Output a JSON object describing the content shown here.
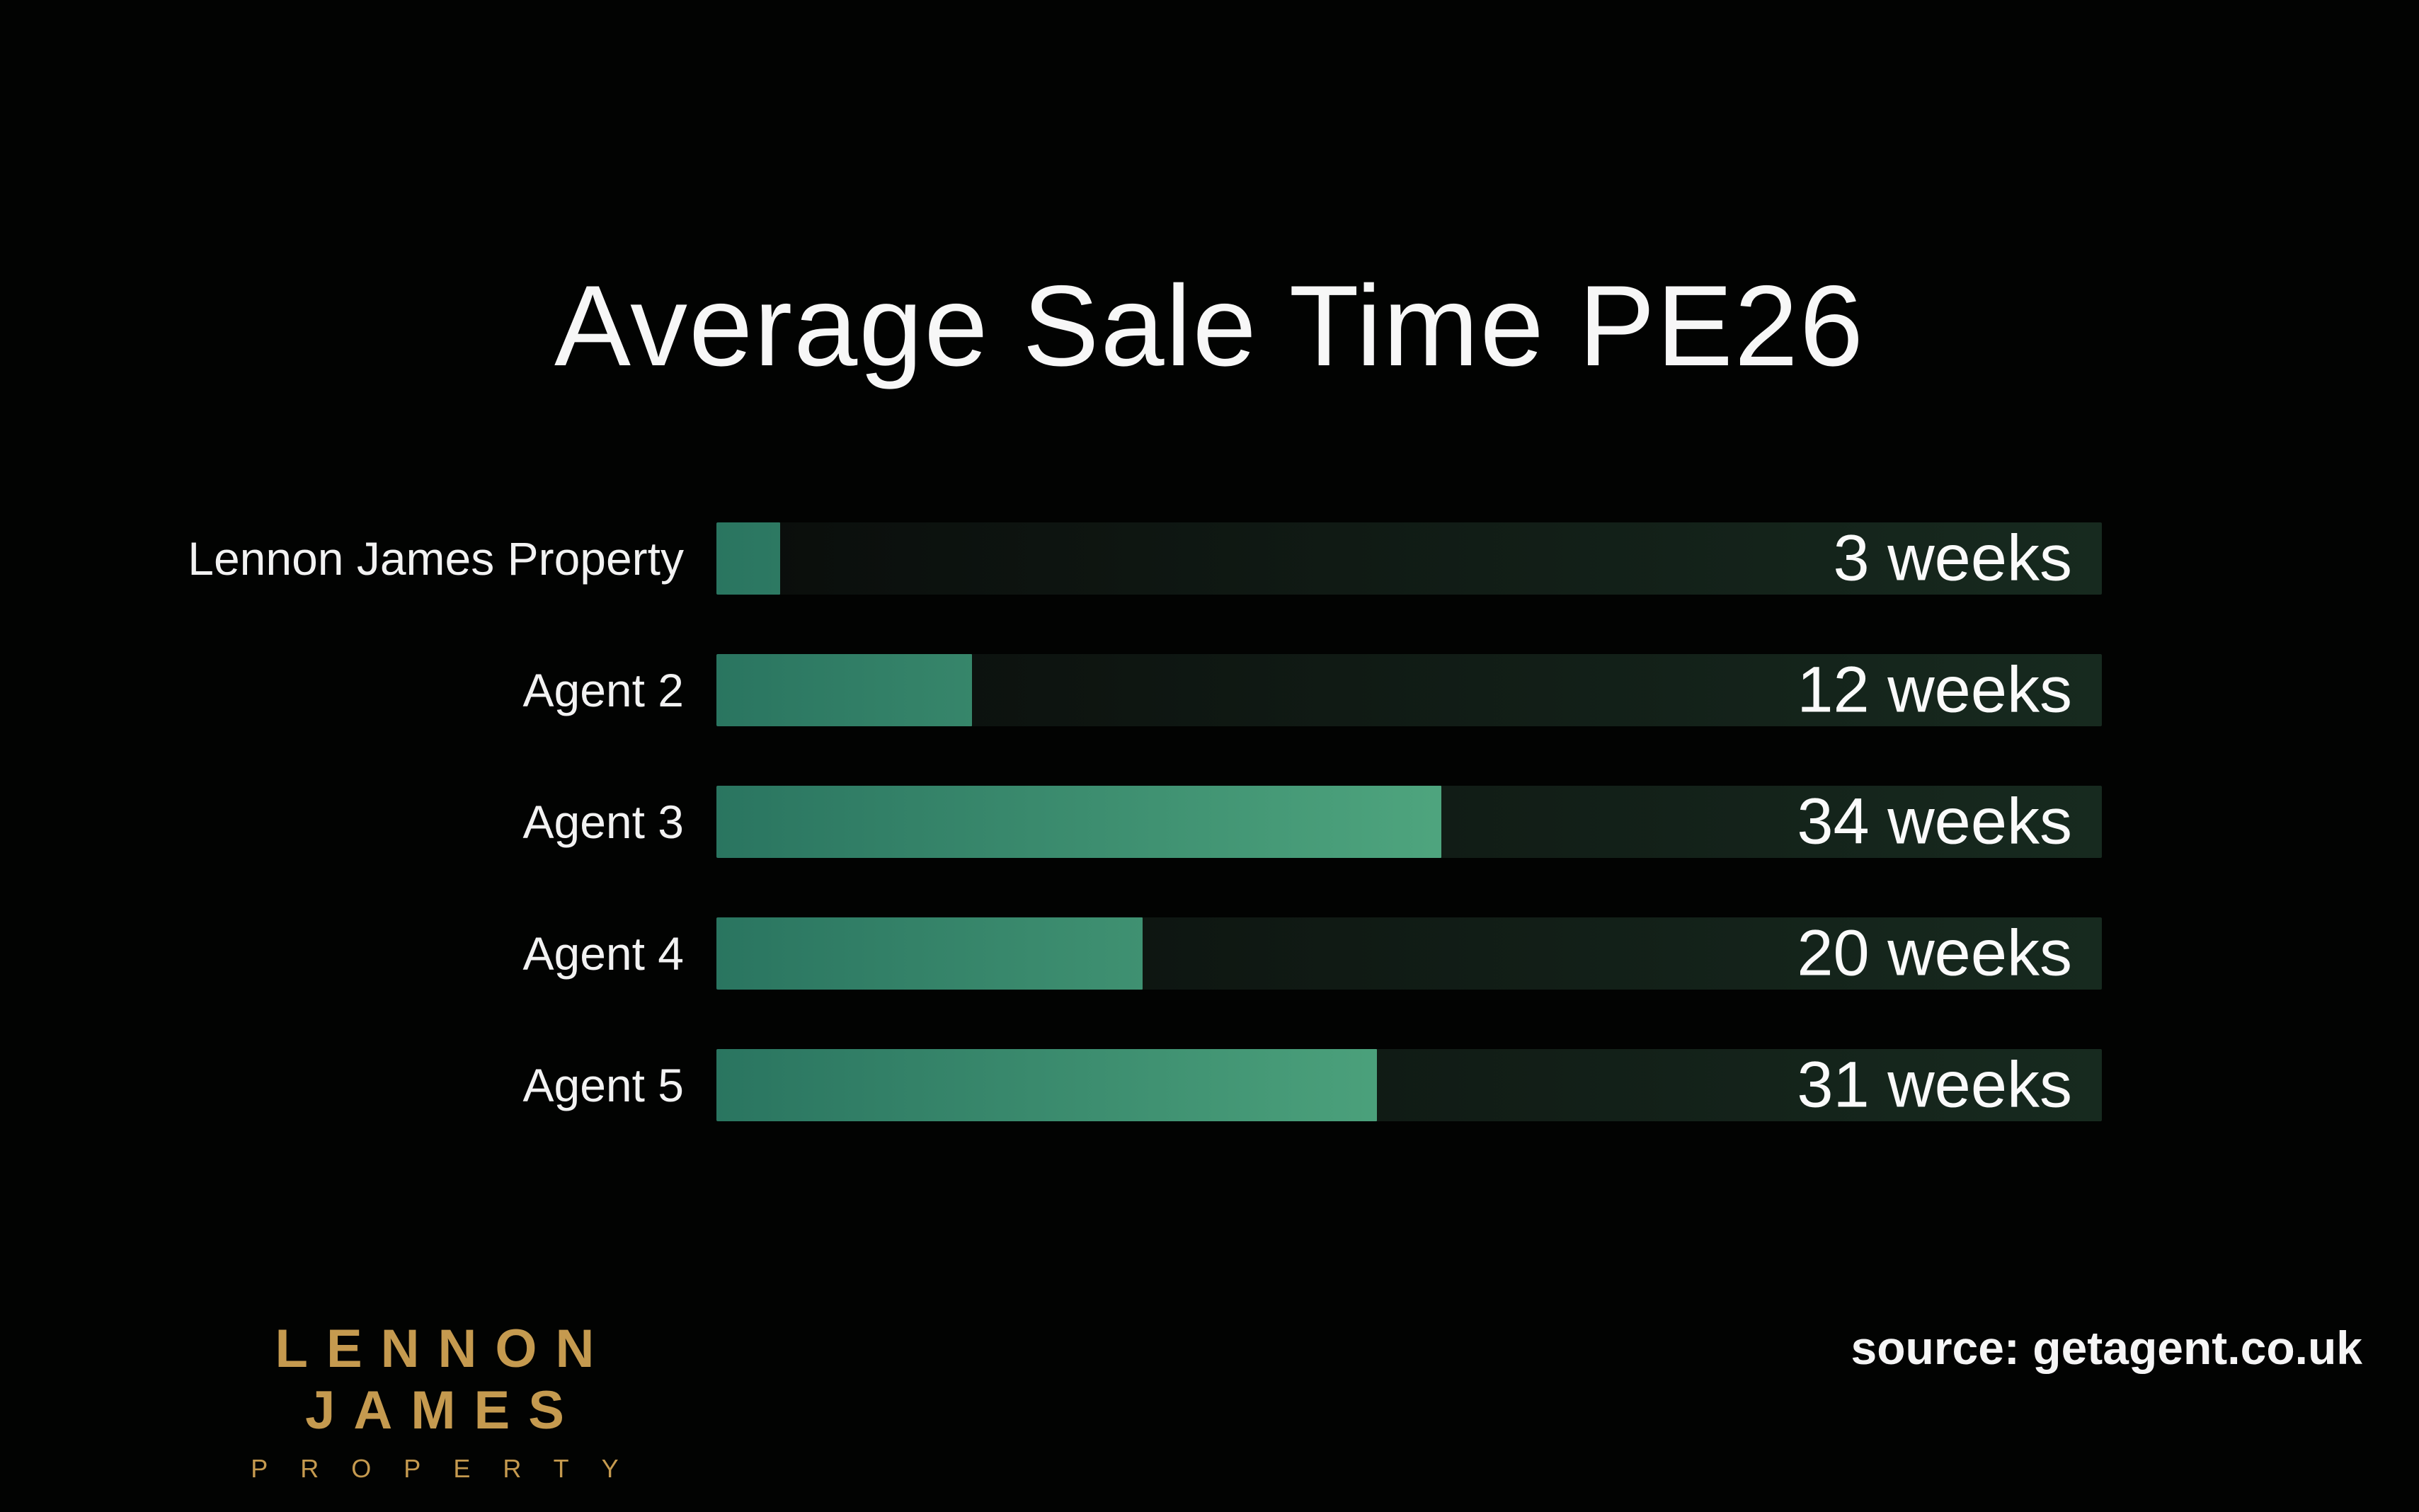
{
  "title": "Average Sale Time PE26",
  "chart_data": {
    "type": "bar",
    "orientation": "horizontal",
    "title": "Average Sale Time PE26",
    "categories": [
      "Lennon James Property",
      "Agent 2",
      "Agent 3",
      "Agent 4",
      "Agent 5"
    ],
    "values": [
      3,
      12,
      34,
      20,
      31
    ],
    "value_labels": [
      "3 weeks",
      "12 weeks",
      "34 weeks",
      "20 weeks",
      "31 weeks"
    ],
    "unit": "weeks",
    "xlim": [
      0,
      65
    ],
    "grid": false,
    "legend": "none",
    "bar_gradient": [
      "#2a7560",
      "#6fd099"
    ],
    "track_gradient": [
      "#0a0d0b",
      "#172a1f"
    ]
  },
  "footer": {
    "logo_line1": "LENNON JAMES",
    "logo_line2": "PROPERTY",
    "logo_color": "#c59a4f",
    "source": "source: getagent.co.uk"
  }
}
